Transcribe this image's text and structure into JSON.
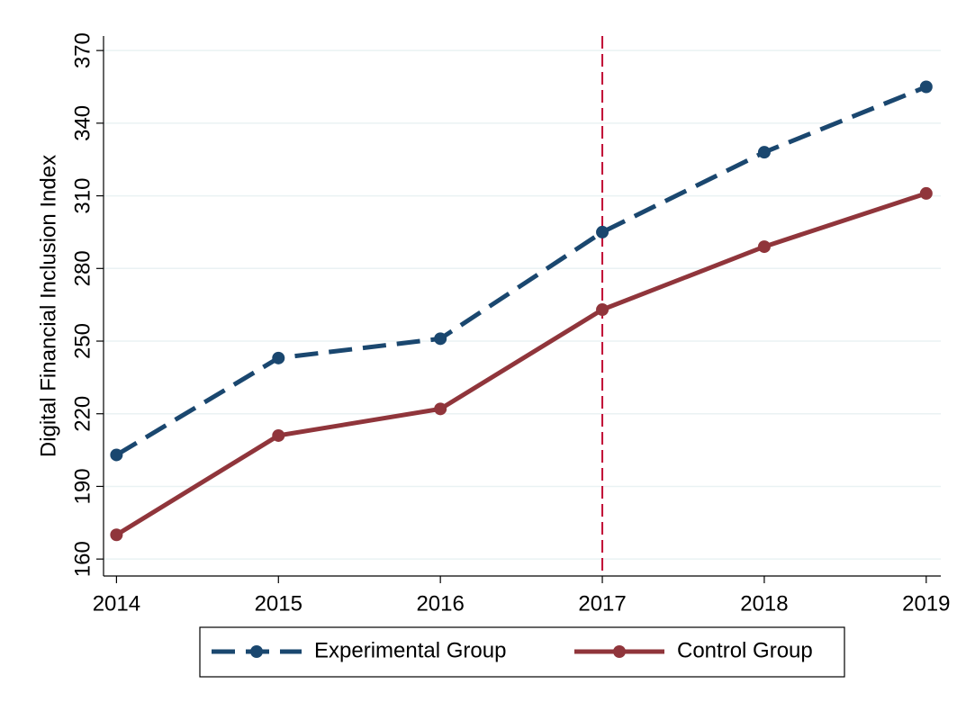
{
  "chart_data": {
    "type": "line",
    "y_label": "Digital Financial Inclusion Index",
    "x": [
      2014,
      2015,
      2016,
      2017,
      2018,
      2019
    ],
    "series": [
      {
        "name": "Experimental Group",
        "color": "#1a476f",
        "dash": true,
        "values": [
          203,
          243,
          251,
          295,
          328,
          355
        ]
      },
      {
        "name": "Control Group",
        "color": "#90353b",
        "dash": false,
        "values": [
          170,
          211,
          222,
          263,
          289,
          311
        ]
      }
    ],
    "xlim": [
      2013.92,
      2019.09
    ],
    "xticks": [
      2014,
      2015,
      2016,
      2017,
      2018,
      2019
    ],
    "ylim": [
      153,
      376
    ],
    "yticks": [
      160,
      190,
      220,
      250,
      280,
      310,
      340,
      370
    ],
    "grid": true,
    "reference_line_x": 2017,
    "reference_line_color": "#c10534",
    "legend": "bottom"
  }
}
